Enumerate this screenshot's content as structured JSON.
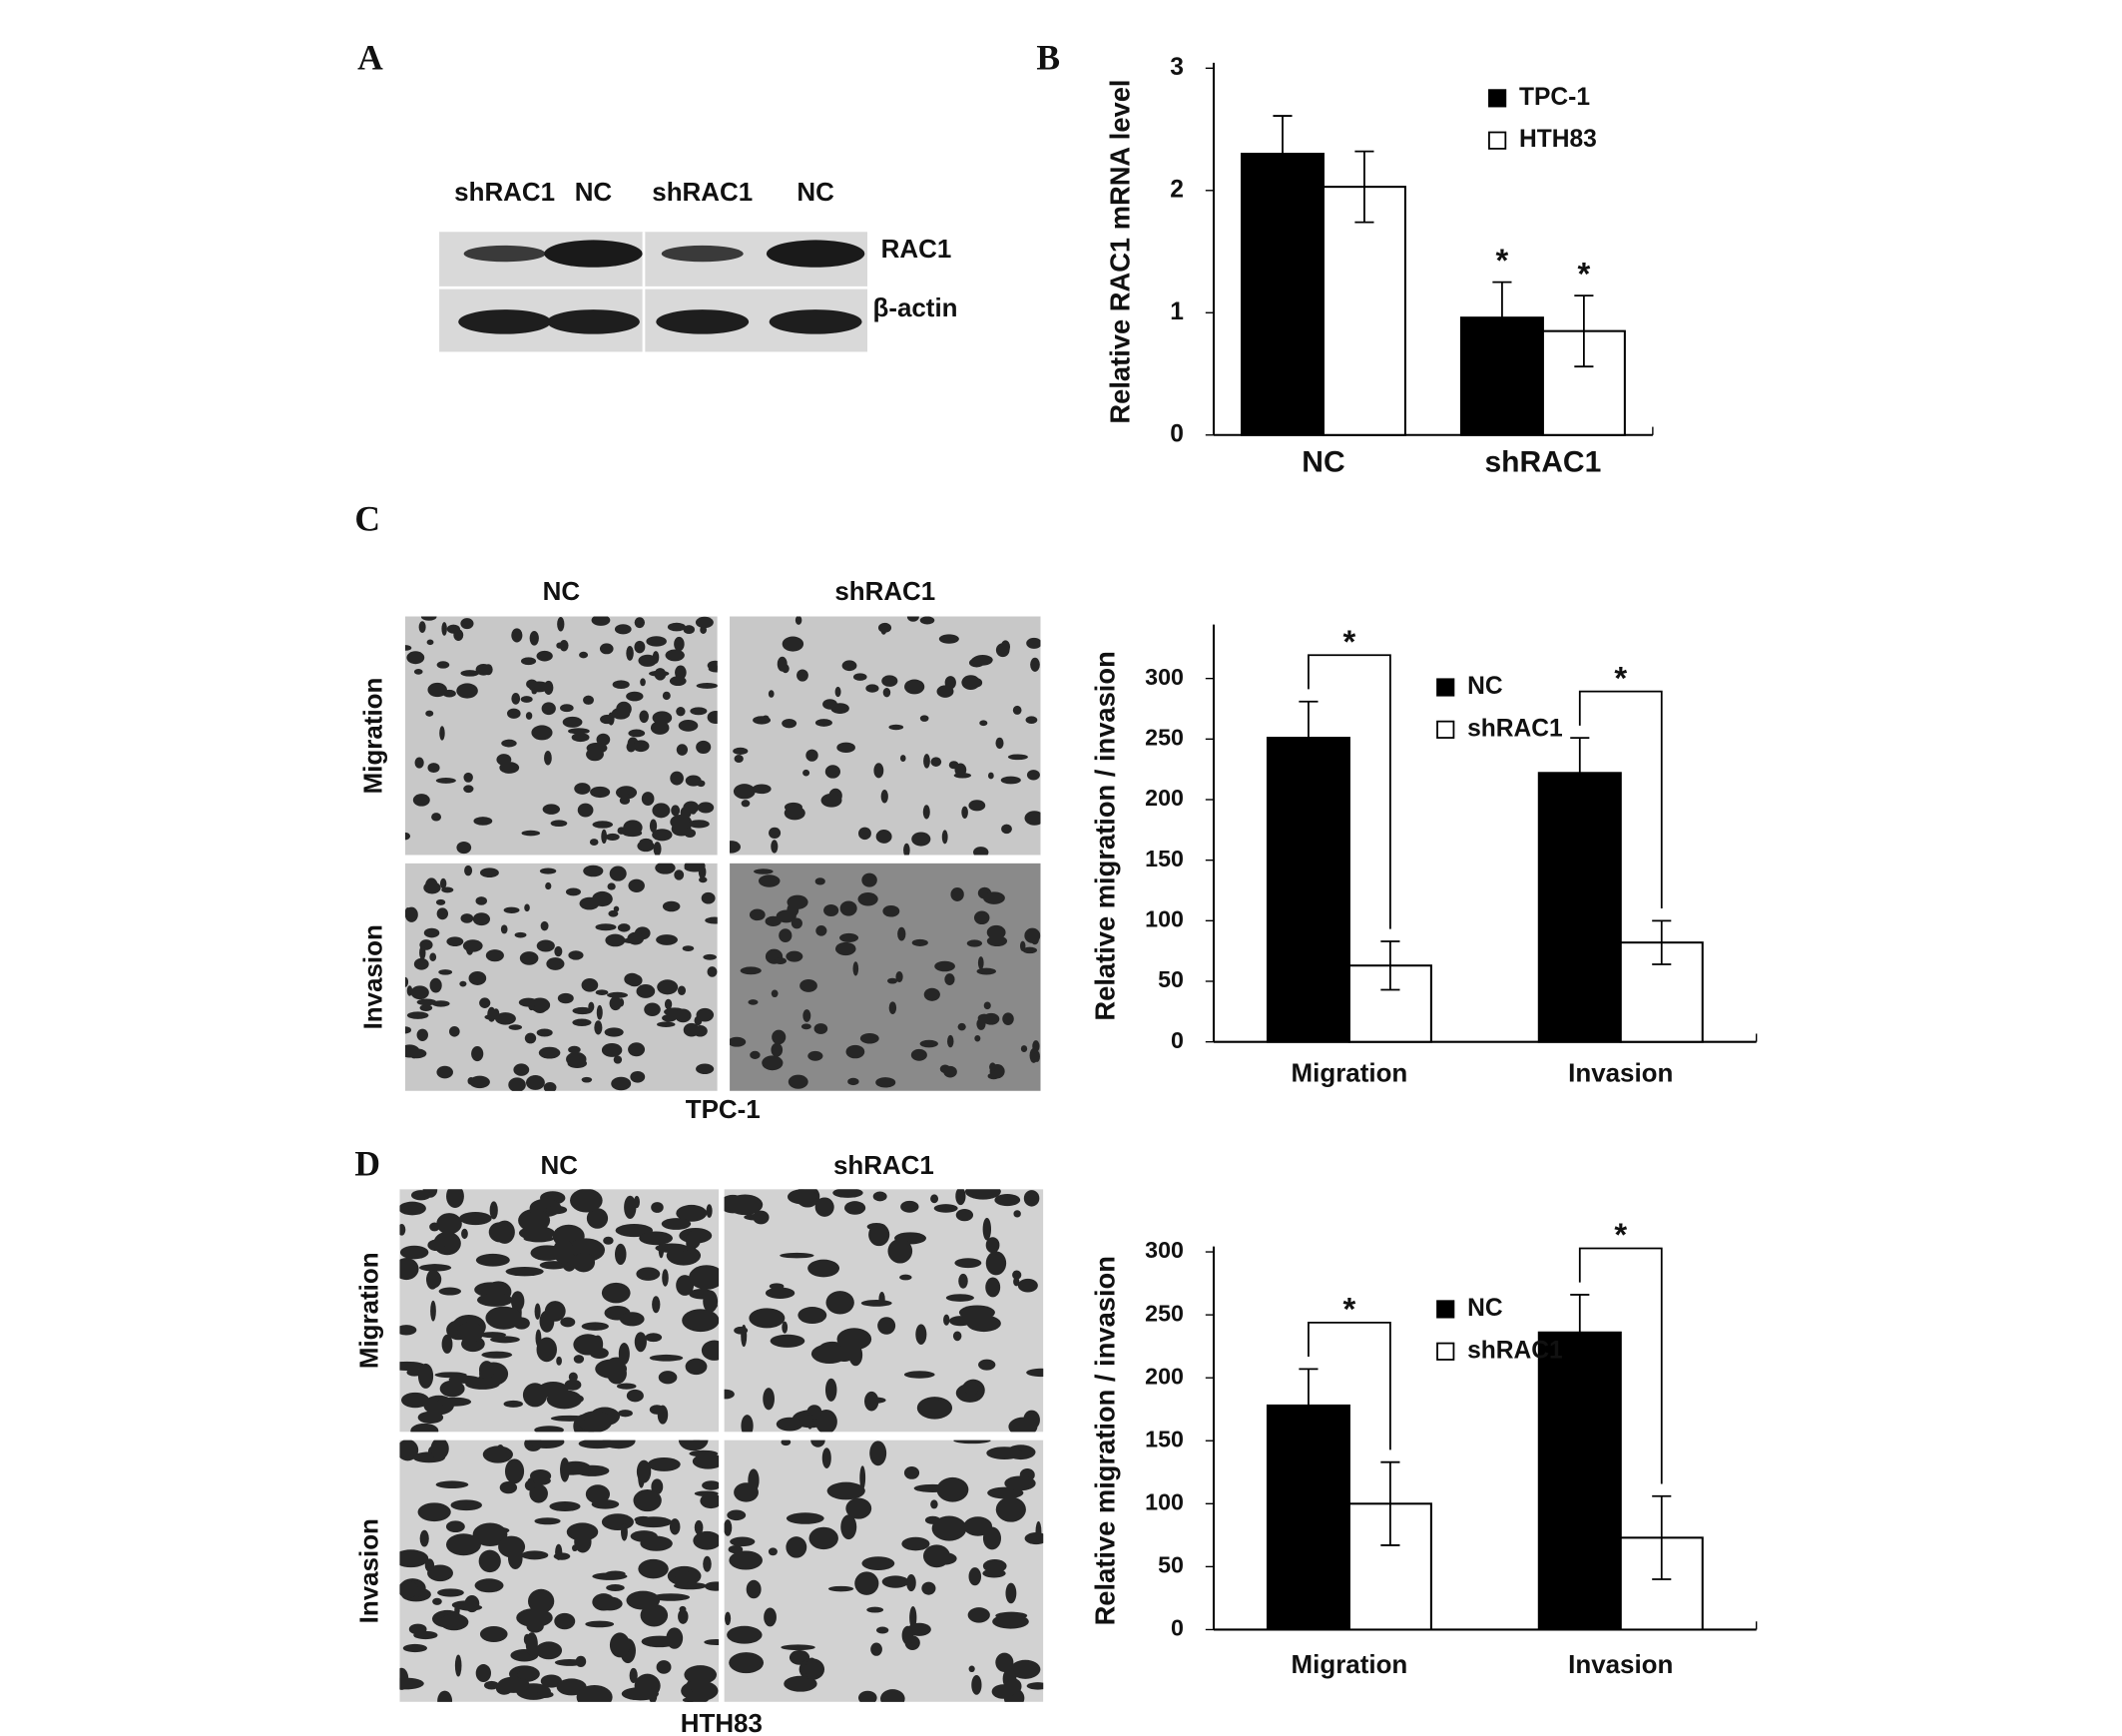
{
  "panel_letters": [
    "A",
    "B",
    "C",
    "D"
  ],
  "blot": {
    "lanes": [
      "shRAC1",
      "NC",
      "shRAC1",
      "NC"
    ],
    "bands": [
      "RAC1",
      "β-actin"
    ]
  },
  "micrographs": [
    {
      "columns": [
        "NC",
        "shRAC1"
      ],
      "rows": [
        "Migration",
        "Invasion"
      ],
      "cell_line": "TPC-1"
    },
    {
      "columns": [
        "NC",
        "shRAC1"
      ],
      "rows": [
        "Migration",
        "Invasion"
      ],
      "cell_line": "HTH83"
    }
  ],
  "chart_data": [
    {
      "type": "bar",
      "y_label": "Relative RAC1 mRNA level",
      "categories": [
        "NC",
        "shRAC1"
      ],
      "series": [
        {
          "name": "TPC-1",
          "color": "#000000",
          "values": [
            2.3,
            0.96
          ],
          "errors": [
            0.31,
            0.29
          ],
          "markers": [
            null,
            "*"
          ]
        },
        {
          "name": "HTH83",
          "color": "#ffffff",
          "values": [
            2.03,
            0.85
          ],
          "errors": [
            0.29,
            0.29
          ],
          "markers": [
            null,
            "*"
          ]
        }
      ],
      "ylim": [
        0,
        3
      ],
      "yticks": [
        0,
        1,
        2,
        3
      ],
      "legend": "upper right"
    },
    {
      "type": "bar",
      "y_label": "Relative migration / invasion",
      "categories": [
        "Migration",
        "Invasion"
      ],
      "series": [
        {
          "name": "NC",
          "color": "#000000",
          "values": [
            251,
            222
          ],
          "errors": [
            30,
            29
          ]
        },
        {
          "name": "shRAC1",
          "color": "#ffffff",
          "values": [
            63,
            82
          ],
          "errors": [
            20,
            18
          ]
        }
      ],
      "significance": [
        "*",
        "*"
      ],
      "ylim": [
        0,
        340
      ],
      "yticks": [
        0,
        50,
        100,
        150,
        200,
        250,
        300
      ],
      "legend": "upper center"
    },
    {
      "type": "bar",
      "y_label": "Relative migration / invasion",
      "categories": [
        "Migration",
        "Invasion"
      ],
      "series": [
        {
          "name": "NC",
          "color": "#000000",
          "values": [
            178,
            236
          ],
          "errors": [
            29,
            30
          ]
        },
        {
          "name": "shRAC1",
          "color": "#ffffff",
          "values": [
            100,
            73
          ],
          "errors": [
            33,
            33
          ]
        }
      ],
      "significance": [
        "*",
        "*"
      ],
      "ylim": [
        0,
        300
      ],
      "yticks": [
        0,
        50,
        100,
        150,
        200,
        250,
        300
      ],
      "legend": "upper center"
    }
  ]
}
